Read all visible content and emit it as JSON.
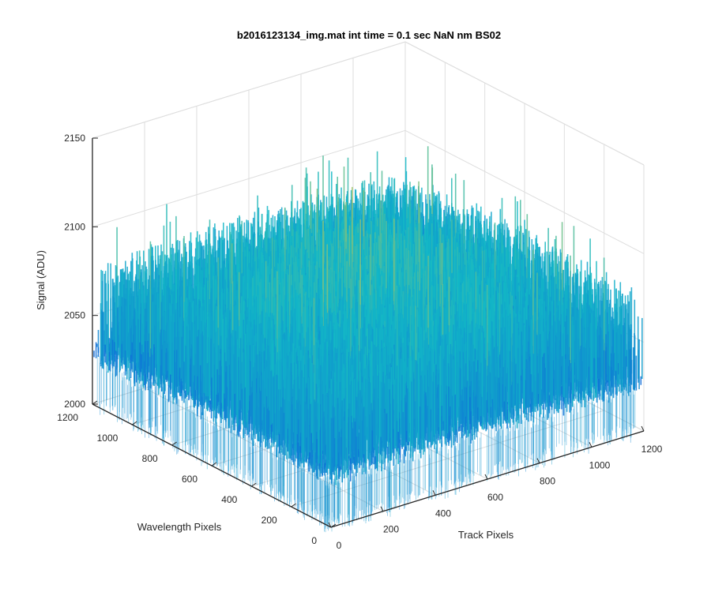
{
  "chart_data": {
    "type": "surface",
    "title": "b2016123134_img.mat int time = 0.1 sec  NaN nm BS02",
    "xlabel": "Track Pixels",
    "ylabel": "Wavelength Pixels",
    "zlabel": "Signal (ADU)",
    "xlim": [
      0,
      1200
    ],
    "ylim": [
      0,
      1200
    ],
    "zlim": [
      2000,
      2150
    ],
    "x_ticks": [
      "0",
      "200",
      "400",
      "600",
      "800",
      "1000",
      "1200"
    ],
    "y_ticks": [
      "0",
      "200",
      "400",
      "600",
      "800",
      "1000",
      "1200"
    ],
    "z_ticks": [
      "2000",
      "2050",
      "2100",
      "2150"
    ],
    "grid": true,
    "colormap": "parula",
    "signal_baseline_adu": 2050,
    "signal_noise_range_adu": [
      2020,
      2145
    ],
    "colors": {
      "low": "#0d6bd8",
      "mid": "#13b8c6",
      "high": "#e7c93a",
      "axis": "#262626",
      "grid": "#dedede"
    }
  }
}
